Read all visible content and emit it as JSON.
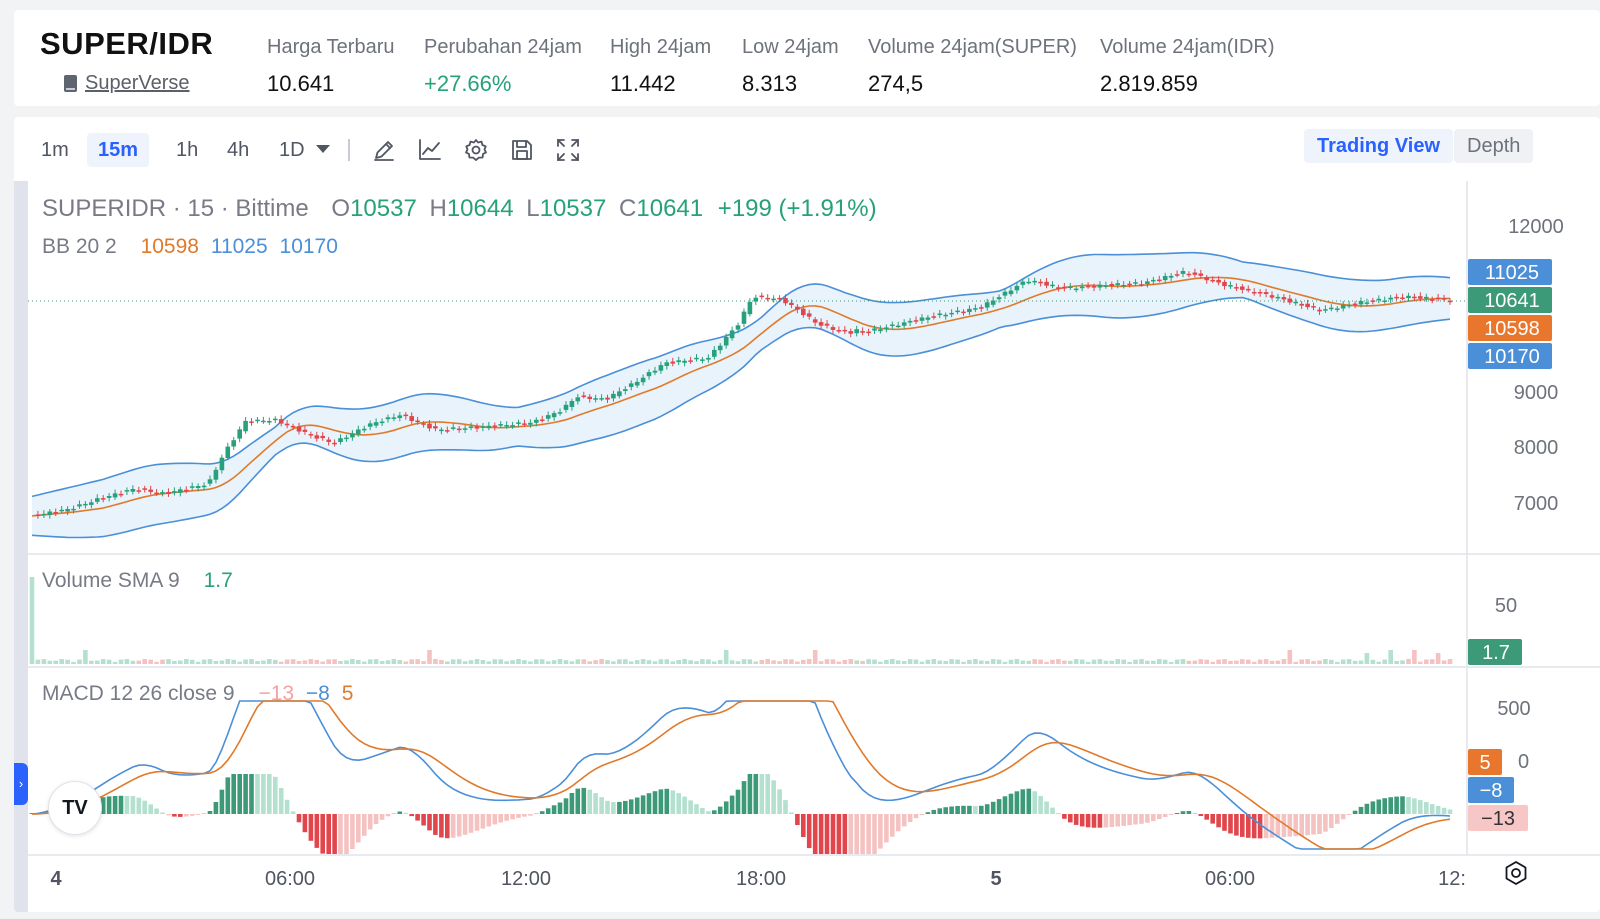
{
  "ticker": {
    "pair": "SUPER/IDR",
    "project_link": "SuperVerse",
    "stats": [
      {
        "label": "Harga Terbaru",
        "value": "10.641",
        "tone": "neutral"
      },
      {
        "label": "Perubahan 24jam",
        "value": "+27.66%",
        "tone": "up"
      },
      {
        "label": "High 24jam",
        "value": "11.442",
        "tone": "neutral"
      },
      {
        "label": "Low 24jam",
        "value": "8.313",
        "tone": "neutral"
      },
      {
        "label": "Volume 24jam(SUPER)",
        "value": "274,5",
        "tone": "neutral"
      },
      {
        "label": "Volume 24jam(IDR)",
        "value": "2.819.859",
        "tone": "neutral"
      }
    ]
  },
  "toolbar": {
    "timeframes": [
      "1m",
      "15m",
      "1h",
      "4h",
      "1D"
    ],
    "active_timeframe": "15m",
    "tools": [
      "pencil-icon",
      "indicator-icon",
      "gear-icon",
      "save-icon",
      "fullscreen-icon"
    ],
    "view_trading": "Trading View",
    "view_depth": "Depth"
  },
  "legend": {
    "symbol": "SUPERIDR · 15 · Bittime",
    "o_label": "O",
    "o": "10537",
    "h_label": "H",
    "h": "10644",
    "l_label": "L",
    "l": "10537",
    "c_label": "C",
    "c": "10641",
    "change": "+199 (+1.91%)",
    "bb_label": "BB 20 2",
    "bb_basis": "10598",
    "bb_upper": "11025",
    "bb_lower": "10170",
    "vol_label": "Volume SMA 9",
    "vol_value": "1.7",
    "macd_label": "MACD 12 26 close 9",
    "macd_hist": "−13",
    "macd_line": "−8",
    "macd_signal": "5"
  },
  "chart_data": {
    "type": "candlestick",
    "price_axis_ticks": [
      "12000",
      "9000",
      "8000",
      "7000"
    ],
    "price_tags": [
      {
        "label": "11025",
        "color": "#4a8fd8"
      },
      {
        "label": "10641",
        "color": "#3d9a79"
      },
      {
        "label": "10598",
        "color": "#e8762d"
      },
      {
        "label": "10170",
        "color": "#4a8fd8"
      }
    ],
    "volume_axis_ticks": [
      "50"
    ],
    "volume_tag": {
      "label": "1.7",
      "color": "#3d9a79"
    },
    "macd_axis_ticks": [
      "500"
    ],
    "macd_tags": [
      {
        "label": "5",
        "color": "#e8762d",
        "text_color": "#ffffff"
      },
      {
        "label": "−8",
        "color": "#4a8fd8",
        "text_color": "#ffffff"
      },
      {
        "label": "−13",
        "color": "#f7c6c6",
        "text_color": "#333333"
      }
    ],
    "time_ticks": [
      "4",
      "06:00",
      "12:00",
      "18:00",
      "5",
      "06:00",
      "12:"
    ],
    "time_tick_bold": [
      true,
      false,
      false,
      false,
      true,
      false,
      false
    ],
    "ohlc_last": {
      "o": 10537,
      "h": 10644,
      "l": 10537,
      "c": 10641
    },
    "bollinger_last": {
      "basis": 10598,
      "upper": 11025,
      "lower": 10170
    },
    "volume_sma_last": 1.7,
    "macd_last": {
      "histogram": -13,
      "macd": -8,
      "signal": 5
    },
    "colors": {
      "up": "#26a17b",
      "down": "#e0464b",
      "bb_fill": "#e8f3fb",
      "bb_band": "#4a8fd8",
      "bb_basis": "#e07a2b"
    }
  }
}
